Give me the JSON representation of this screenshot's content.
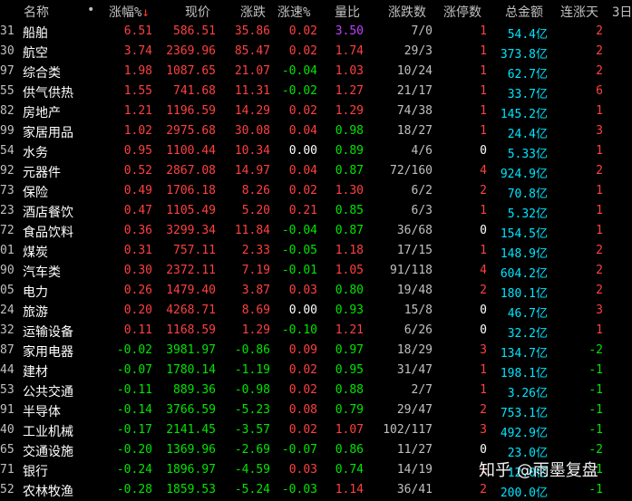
{
  "header": {
    "name": "名称",
    "dot": "•",
    "pct": "涨幅%",
    "sort_arrow": "↓",
    "price": "现价",
    "change": "涨跌",
    "speed": "涨速%",
    "vol_ratio": "量比",
    "up_down": "涨跌数",
    "limit_up": "涨停数",
    "amount": "总金额",
    "streak": "连涨天",
    "extra": "3日"
  },
  "rows": [
    {
      "code": "31",
      "name": "船舶",
      "pct": "6.51",
      "price": "586.51",
      "chg": "35.86",
      "spd": "0.02",
      "vr": "3.50",
      "ud": "7/0",
      "lim": "1",
      "amt": "54.4亿",
      "days": "2"
    },
    {
      "code": "30",
      "name": "航空",
      "pct": "3.74",
      "price": "2369.96",
      "chg": "85.47",
      "spd": "0.02",
      "vr": "1.74",
      "ud": "29/3",
      "lim": "1",
      "amt": "373.8亿",
      "days": "2"
    },
    {
      "code": "97",
      "name": "综合类",
      "pct": "1.98",
      "price": "1087.65",
      "chg": "21.07",
      "spd": "-0.04",
      "vr": "1.03",
      "ud": "10/24",
      "lim": "1",
      "amt": "62.7亿",
      "days": "2"
    },
    {
      "code": "55",
      "name": "供气供热",
      "pct": "1.55",
      "price": "741.68",
      "chg": "11.31",
      "spd": "-0.02",
      "vr": "1.27",
      "ud": "21/17",
      "lim": "1",
      "amt": "33.7亿",
      "days": "6"
    },
    {
      "code": "82",
      "name": "房地产",
      "pct": "1.21",
      "price": "1196.59",
      "chg": "14.29",
      "spd": "0.02",
      "vr": "1.29",
      "ud": "74/38",
      "lim": "1",
      "amt": "145.2亿",
      "days": "1"
    },
    {
      "code": "99",
      "name": "家居用品",
      "pct": "1.02",
      "price": "2975.68",
      "chg": "30.08",
      "spd": "0.04",
      "vr": "0.98",
      "ud": "18/27",
      "lim": "1",
      "amt": "24.4亿",
      "days": "3"
    },
    {
      "code": "54",
      "name": "水务",
      "pct": "0.95",
      "price": "1100.44",
      "chg": "10.34",
      "spd": "0.00",
      "vr": "0.89",
      "ud": "4/6",
      "lim": "0",
      "amt": "5.33亿",
      "days": "1"
    },
    {
      "code": "92",
      "name": "元器件",
      "pct": "0.52",
      "price": "2867.08",
      "chg": "14.97",
      "spd": "0.04",
      "vr": "0.87",
      "ud": "72/160",
      "lim": "4",
      "amt": "924.9亿",
      "days": "2"
    },
    {
      "code": "73",
      "name": "保险",
      "pct": "0.49",
      "price": "1706.18",
      "chg": "8.26",
      "spd": "0.02",
      "vr": "1.30",
      "ud": "6/2",
      "lim": "2",
      "amt": "70.8亿",
      "days": "1"
    },
    {
      "code": "23",
      "name": "酒店餐饮",
      "pct": "0.47",
      "price": "1105.49",
      "chg": "5.20",
      "spd": "0.21",
      "vr": "0.85",
      "ud": "6/3",
      "lim": "1",
      "amt": "5.32亿",
      "days": "1"
    },
    {
      "code": "72",
      "name": "食品饮料",
      "pct": "0.36",
      "price": "3299.34",
      "chg": "11.84",
      "spd": "-0.04",
      "vr": "0.87",
      "ud": "36/68",
      "lim": "0",
      "amt": "154.5亿",
      "days": "1"
    },
    {
      "code": "01",
      "name": "煤炭",
      "pct": "0.31",
      "price": "757.11",
      "chg": "2.33",
      "spd": "-0.05",
      "vr": "1.18",
      "ud": "17/15",
      "lim": "1",
      "amt": "148.9亿",
      "days": "2"
    },
    {
      "code": "90",
      "name": "汽车类",
      "pct": "0.30",
      "price": "2372.11",
      "chg": "7.19",
      "spd": "-0.01",
      "vr": "1.05",
      "ud": "91/118",
      "lim": "4",
      "amt": "604.2亿",
      "days": "2"
    },
    {
      "code": "05",
      "name": "电力",
      "pct": "0.26",
      "price": "1479.40",
      "chg": "3.87",
      "spd": "0.03",
      "vr": "0.80",
      "ud": "19/48",
      "lim": "2",
      "amt": "180.1亿",
      "days": "2"
    },
    {
      "code": "24",
      "name": "旅游",
      "pct": "0.20",
      "price": "4268.71",
      "chg": "8.69",
      "spd": "0.00",
      "vr": "0.93",
      "ud": "15/8",
      "lim": "0",
      "amt": "46.7亿",
      "days": "3"
    },
    {
      "code": "32",
      "name": "运输设备",
      "pct": "0.11",
      "price": "1168.59",
      "chg": "1.29",
      "spd": "-0.10",
      "vr": "1.21",
      "ud": "6/26",
      "lim": "0",
      "amt": "32.2亿",
      "days": "1"
    },
    {
      "code": "87",
      "name": "家用电器",
      "pct": "-0.02",
      "price": "3981.97",
      "chg": "-0.86",
      "spd": "0.09",
      "vr": "0.97",
      "ud": "18/29",
      "lim": "3",
      "amt": "134.7亿",
      "days": "-2"
    },
    {
      "code": "44",
      "name": "建材",
      "pct": "-0.07",
      "price": "1780.14",
      "chg": "-1.19",
      "spd": "0.02",
      "vr": "0.95",
      "ud": "31/47",
      "lim": "1",
      "amt": "198.1亿",
      "days": "-1"
    },
    {
      "code": "53",
      "name": "公共交通",
      "pct": "-0.11",
      "price": "889.36",
      "chg": "-0.98",
      "spd": "0.02",
      "vr": "0.88",
      "ud": "2/7",
      "lim": "1",
      "amt": "3.26亿",
      "days": "-1"
    },
    {
      "code": "91",
      "name": "半导体",
      "pct": "-0.14",
      "price": "3766.59",
      "chg": "-5.23",
      "spd": "0.08",
      "vr": "0.79",
      "ud": "29/47",
      "lim": "2",
      "amt": "753.1亿",
      "days": "-1"
    },
    {
      "code": "40",
      "name": "工业机械",
      "pct": "-0.17",
      "price": "2141.45",
      "chg": "-3.57",
      "spd": "0.02",
      "vr": "1.07",
      "ud": "102/117",
      "lim": "3",
      "amt": "492.9亿",
      "days": "-1"
    },
    {
      "code": "65",
      "name": "交通设施",
      "pct": "-0.20",
      "price": "1369.96",
      "chg": "-2.69",
      "spd": "-0.07",
      "vr": "0.86",
      "ud": "11/27",
      "lim": "0",
      "amt": "23.0亿",
      "days": "-2"
    },
    {
      "code": "71",
      "name": "银行",
      "pct": "-0.24",
      "price": "1896.97",
      "chg": "-4.59",
      "spd": "0.03",
      "vr": "0.74",
      "ud": "14/19",
      "lim": "1",
      "amt": "12.0亿",
      "days": "-1"
    },
    {
      "code": "52",
      "name": "农林牧渔",
      "pct": "-0.28",
      "price": "1859.53",
      "chg": "-5.24",
      "spd": "-0.03",
      "vr": "1.14",
      "ud": "36/41",
      "lim": "2",
      "amt": "200.0亿",
      "days": "-1"
    }
  ],
  "watermark": "知乎 @雨墨复盘",
  "colors": {
    "up": "#ff4040",
    "down": "#00e600",
    "amount": "#00e5ff",
    "highlight_vr": "#c040ff",
    "limit": "#ff4040"
  }
}
